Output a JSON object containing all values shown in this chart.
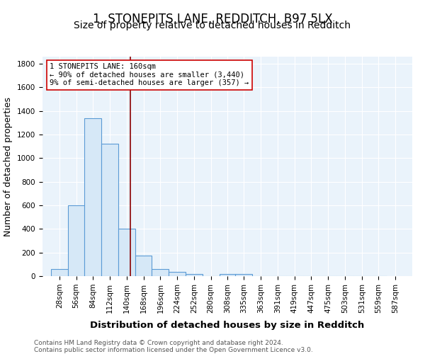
{
  "title": "1, STONEPITS LANE, REDDITCH, B97 5LX",
  "subtitle": "Size of property relative to detached houses in Redditch",
  "xlabel": "Distribution of detached houses by size in Redditch",
  "ylabel": "Number of detached properties",
  "bin_labels": [
    "28sqm",
    "56sqm",
    "84sqm",
    "112sqm",
    "140sqm",
    "168sqm",
    "196sqm",
    "224sqm",
    "252sqm",
    "280sqm",
    "308sqm",
    "335sqm",
    "363sqm",
    "391sqm",
    "419sqm",
    "447sqm",
    "475sqm",
    "503sqm",
    "531sqm",
    "559sqm",
    "587sqm"
  ],
  "bin_edges": [
    28,
    56,
    84,
    112,
    140,
    168,
    196,
    224,
    252,
    280,
    308,
    335,
    363,
    391,
    419,
    447,
    475,
    503,
    531,
    559,
    587
  ],
  "bar_heights": [
    60,
    600,
    1340,
    1120,
    400,
    175,
    60,
    35,
    20,
    0,
    20,
    20,
    0,
    0,
    0,
    0,
    0,
    0,
    0,
    0
  ],
  "bar_color": "#d6e8f7",
  "bar_edge_color": "#5b9bd5",
  "property_line_x": 160,
  "property_line_color": "#8b0000",
  "annotation_text": "1 STONEPITS LANE: 160sqm\n← 90% of detached houses are smaller (3,440)\n9% of semi-detached houses are larger (357) →",
  "annotation_box_color": "#ffffff",
  "annotation_box_edge_color": "#cc0000",
  "ylim": [
    0,
    1860
  ],
  "yticks": [
    0,
    200,
    400,
    600,
    800,
    1000,
    1200,
    1400,
    1600,
    1800
  ],
  "footer": "Contains HM Land Registry data © Crown copyright and database right 2024.\nContains public sector information licensed under the Open Government Licence v3.0.",
  "bg_color": "#eaf3fb",
  "grid_color": "#ffffff",
  "title_fontsize": 12,
  "subtitle_fontsize": 10,
  "label_fontsize": 9,
  "tick_fontsize": 7.5
}
